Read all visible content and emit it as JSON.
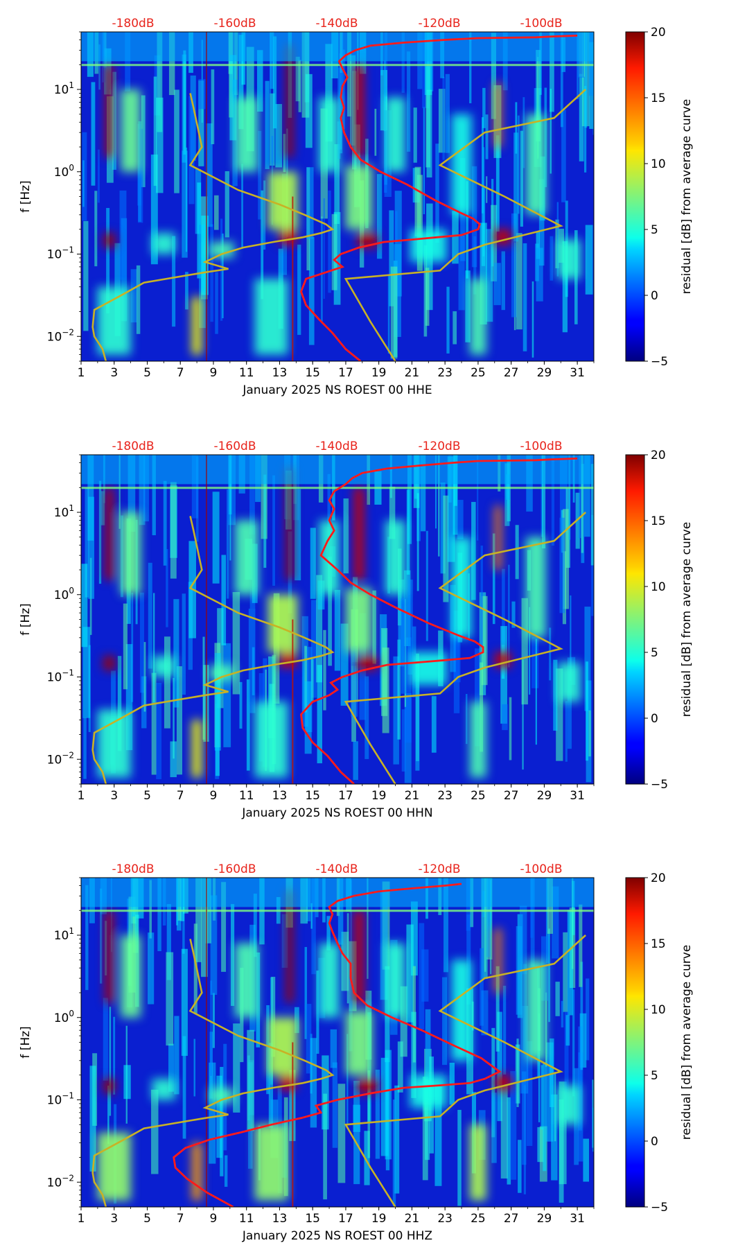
{
  "figure": {
    "cbar_label": "residual [dB] from average curve"
  },
  "chart_data": [
    {
      "type": "heatmap",
      "xlabel": "January 2025 NS ROEST 00 HHE",
      "ylabel": "f [Hz]",
      "x_ticks": [
        "1",
        "3",
        "5",
        "7",
        "9",
        "11",
        "13",
        "15",
        "17",
        "19",
        "21",
        "23",
        "25",
        "27",
        "29",
        "31"
      ],
      "y_ticks": [
        "10^-2",
        "10^-1",
        "10^0",
        "10^1"
      ],
      "xlim": [
        1,
        32
      ],
      "ylim": [
        0.005,
        50
      ],
      "yscale": "log",
      "top_ticks": [
        "-180dB",
        "-160dB",
        "-140dB",
        "-120dB",
        "-100dB"
      ],
      "colorbar": {
        "ticks": [
          "-5",
          "0",
          "5",
          "10",
          "15",
          "20"
        ],
        "range": [
          -5,
          20
        ],
        "colormap": "jet"
      },
      "series": [
        {
          "color": "#ff1a1a",
          "points": [
            [
              17.9,
              0.005
            ],
            [
              17.0,
              0.007
            ],
            [
              16.2,
              0.011
            ],
            [
              15.4,
              0.016
            ],
            [
              14.6,
              0.024
            ],
            [
              14.3,
              0.035
            ],
            [
              14.6,
              0.05
            ],
            [
              15.8,
              0.06
            ],
            [
              16.8,
              0.07
            ],
            [
              16.3,
              0.085
            ],
            [
              16.7,
              0.1
            ],
            [
              17.8,
              0.12
            ],
            [
              19.3,
              0.14
            ],
            [
              21.0,
              0.15
            ],
            [
              22.5,
              0.16
            ],
            [
              24.0,
              0.17
            ],
            [
              25.0,
              0.2
            ],
            [
              25.1,
              0.23
            ],
            [
              24.7,
              0.27
            ],
            [
              23.9,
              0.32
            ],
            [
              22.4,
              0.45
            ],
            [
              20.7,
              0.7
            ],
            [
              19.1,
              1.0
            ],
            [
              17.9,
              1.4
            ],
            [
              17.3,
              2.0
            ],
            [
              16.9,
              3.0
            ],
            [
              16.7,
              4.5
            ],
            [
              16.9,
              6
            ],
            [
              16.7,
              8
            ],
            [
              16.8,
              11
            ],
            [
              17.1,
              14
            ],
            [
              16.8,
              18
            ],
            [
              16.6,
              22
            ],
            [
              17.0,
              26
            ],
            [
              17.6,
              30
            ],
            [
              18.5,
              34
            ],
            [
              20.5,
              37
            ],
            [
              23.0,
              40
            ],
            [
              25.0,
              42
            ],
            [
              28.5,
              43
            ],
            [
              29.5,
              44
            ],
            [
              31.0,
              45
            ]
          ]
        },
        {
          "color": "#c8b226",
          "points": [
            [
              2.5,
              0.005
            ],
            [
              2.3,
              0.007
            ],
            [
              1.8,
              0.01
            ],
            [
              1.7,
              0.013
            ],
            [
              1.8,
              0.021
            ],
            [
              3.6,
              0.033
            ],
            [
              4.8,
              0.045
            ],
            [
              8.5,
              0.06
            ],
            [
              9.9,
              0.066
            ],
            [
              8.5,
              0.08
            ],
            [
              9.5,
              0.1
            ],
            [
              10.8,
              0.12
            ],
            [
              12.6,
              0.14
            ],
            [
              14.4,
              0.16
            ],
            [
              15.5,
              0.18
            ],
            [
              16.2,
              0.2
            ],
            [
              15.8,
              0.23
            ],
            [
              14.5,
              0.3
            ],
            [
              13.0,
              0.4
            ],
            [
              10.5,
              0.6
            ],
            [
              7.6,
              1.2
            ],
            [
              8.3,
              2.0
            ],
            [
              7.8,
              6
            ],
            [
              7.6,
              9
            ],
            [
              20.0,
              0.005
            ],
            [
              18.5,
              0.015
            ],
            [
              17.0,
              0.05
            ],
            [
              22.7,
              0.063
            ],
            [
              23.8,
              0.1
            ],
            [
              25.4,
              0.13
            ],
            [
              30.0,
              0.22
            ],
            [
              26.6,
              0.5
            ],
            [
              22.7,
              1.2
            ],
            [
              25.4,
              3.0
            ],
            [
              29.6,
              4.5
            ],
            [
              31.5,
              10
            ]
          ]
        }
      ]
    },
    {
      "type": "heatmap",
      "xlabel": "January 2025 NS ROEST 00 HHN",
      "ylabel": "f [Hz]",
      "x_ticks": [
        "1",
        "3",
        "5",
        "7",
        "9",
        "11",
        "13",
        "15",
        "17",
        "19",
        "21",
        "23",
        "25",
        "27",
        "29",
        "31"
      ],
      "y_ticks": [
        "10^-2",
        "10^-1",
        "10^0",
        "10^1"
      ],
      "xlim": [
        1,
        32
      ],
      "ylim": [
        0.005,
        50
      ],
      "yscale": "log",
      "top_ticks": [
        "-180dB",
        "-160dB",
        "-140dB",
        "-120dB",
        "-100dB"
      ],
      "colorbar": {
        "ticks": [
          "-5",
          "0",
          "5",
          "10",
          "15",
          "20"
        ],
        "range": [
          -5,
          20
        ],
        "colormap": "jet"
      },
      "series": [
        {
          "color": "#ff1a1a",
          "points": [
            [
              17.5,
              0.005
            ],
            [
              16.7,
              0.007
            ],
            [
              15.9,
              0.011
            ],
            [
              15.0,
              0.016
            ],
            [
              14.4,
              0.024
            ],
            [
              14.3,
              0.035
            ],
            [
              15.0,
              0.05
            ],
            [
              16.0,
              0.06
            ],
            [
              16.5,
              0.07
            ],
            [
              16.1,
              0.085
            ],
            [
              16.8,
              0.1
            ],
            [
              18.0,
              0.12
            ],
            [
              19.5,
              0.14
            ],
            [
              21.3,
              0.15
            ],
            [
              23.0,
              0.16
            ],
            [
              24.5,
              0.17
            ],
            [
              25.3,
              0.2
            ],
            [
              25.3,
              0.23
            ],
            [
              24.8,
              0.27
            ],
            [
              23.8,
              0.32
            ],
            [
              22.0,
              0.45
            ],
            [
              20.0,
              0.7
            ],
            [
              18.5,
              1.0
            ],
            [
              17.3,
              1.4
            ],
            [
              16.5,
              2.0
            ],
            [
              15.5,
              3.0
            ],
            [
              15.9,
              4.5
            ],
            [
              16.3,
              6
            ],
            [
              16.0,
              8
            ],
            [
              16.3,
              11
            ],
            [
              16.0,
              14
            ],
            [
              16.3,
              18
            ],
            [
              17.0,
              22
            ],
            [
              17.4,
              26
            ],
            [
              18.0,
              30
            ],
            [
              19.5,
              34
            ],
            [
              21.5,
              37
            ],
            [
              23.5,
              40
            ],
            [
              25.0,
              42
            ],
            [
              28.5,
              43
            ],
            [
              29.5,
              44
            ],
            [
              31.0,
              45
            ]
          ]
        },
        {
          "color": "#c8b226",
          "points": [
            [
              2.5,
              0.005
            ],
            [
              2.3,
              0.007
            ],
            [
              1.8,
              0.01
            ],
            [
              1.7,
              0.013
            ],
            [
              1.8,
              0.021
            ],
            [
              3.6,
              0.033
            ],
            [
              4.8,
              0.045
            ],
            [
              8.5,
              0.06
            ],
            [
              9.9,
              0.066
            ],
            [
              8.5,
              0.08
            ],
            [
              9.5,
              0.1
            ],
            [
              10.8,
              0.12
            ],
            [
              12.6,
              0.14
            ],
            [
              14.4,
              0.16
            ],
            [
              15.5,
              0.18
            ],
            [
              16.2,
              0.2
            ],
            [
              15.8,
              0.23
            ],
            [
              14.5,
              0.3
            ],
            [
              13.0,
              0.4
            ],
            [
              10.5,
              0.6
            ],
            [
              7.6,
              1.2
            ],
            [
              8.3,
              2.0
            ],
            [
              7.8,
              6
            ],
            [
              7.6,
              9
            ],
            [
              20.0,
              0.005
            ],
            [
              18.5,
              0.015
            ],
            [
              17.0,
              0.05
            ],
            [
              22.7,
              0.063
            ],
            [
              23.8,
              0.1
            ],
            [
              25.4,
              0.13
            ],
            [
              30.0,
              0.22
            ],
            [
              26.6,
              0.5
            ],
            [
              22.7,
              1.2
            ],
            [
              25.4,
              3.0
            ],
            [
              29.6,
              4.5
            ],
            [
              31.5,
              10
            ]
          ]
        }
      ]
    },
    {
      "type": "heatmap",
      "xlabel": "January 2025 NS ROEST 00 HHZ",
      "ylabel": "f [Hz]",
      "x_ticks": [
        "1",
        "3",
        "5",
        "7",
        "9",
        "11",
        "13",
        "15",
        "17",
        "19",
        "21",
        "23",
        "25",
        "27",
        "29",
        "31"
      ],
      "y_ticks": [
        "10^-2",
        "10^-1",
        "10^0",
        "10^1"
      ],
      "xlim": [
        1,
        32
      ],
      "ylim": [
        0.005,
        50
      ],
      "yscale": "log",
      "top_ticks": [
        "-180dB",
        "-160dB",
        "-140dB",
        "-120dB",
        "-100dB"
      ],
      "colorbar": {
        "ticks": [
          "-5",
          "0",
          "5",
          "10",
          "15",
          "20"
        ],
        "range": [
          -5,
          20
        ],
        "colormap": "jet"
      },
      "series": [
        {
          "color": "#ff1a1a",
          "points": [
            [
              10.2,
              0.005
            ],
            [
              8.6,
              0.0075
            ],
            [
              7.4,
              0.011
            ],
            [
              6.7,
              0.015
            ],
            [
              6.6,
              0.02
            ],
            [
              7.3,
              0.026
            ],
            [
              8.8,
              0.033
            ],
            [
              10.6,
              0.04
            ],
            [
              12.5,
              0.05
            ],
            [
              14.3,
              0.06
            ],
            [
              15.5,
              0.07
            ],
            [
              15.2,
              0.085
            ],
            [
              16.5,
              0.1
            ],
            [
              18.5,
              0.12
            ],
            [
              20.5,
              0.14
            ],
            [
              22.7,
              0.15
            ],
            [
              24.5,
              0.16
            ],
            [
              25.4,
              0.18
            ],
            [
              26.3,
              0.22
            ],
            [
              25.7,
              0.27
            ],
            [
              25.2,
              0.32
            ],
            [
              23.6,
              0.45
            ],
            [
              21.6,
              0.7
            ],
            [
              19.8,
              1.0
            ],
            [
              18.3,
              1.4
            ],
            [
              17.5,
              2.0
            ],
            [
              17.3,
              3.0
            ],
            [
              17.3,
              4.5
            ],
            [
              16.8,
              6
            ],
            [
              16.5,
              8
            ],
            [
              16.2,
              11
            ],
            [
              16.0,
              14
            ],
            [
              16.2,
              18
            ],
            [
              16.0,
              22
            ],
            [
              16.5,
              26
            ],
            [
              17.5,
              30
            ],
            [
              19.0,
              34
            ],
            [
              21.0,
              37
            ],
            [
              23.0,
              40
            ],
            [
              24.0,
              42
            ]
          ]
        },
        {
          "color": "#c8b226",
          "points": [
            [
              2.5,
              0.005
            ],
            [
              2.3,
              0.007
            ],
            [
              1.8,
              0.01
            ],
            [
              1.7,
              0.013
            ],
            [
              1.8,
              0.021
            ],
            [
              3.6,
              0.033
            ],
            [
              4.8,
              0.045
            ],
            [
              8.5,
              0.06
            ],
            [
              9.9,
              0.066
            ],
            [
              8.5,
              0.08
            ],
            [
              9.5,
              0.1
            ],
            [
              10.8,
              0.12
            ],
            [
              12.6,
              0.14
            ],
            [
              14.4,
              0.16
            ],
            [
              15.5,
              0.18
            ],
            [
              16.2,
              0.2
            ],
            [
              15.8,
              0.23
            ],
            [
              14.5,
              0.3
            ],
            [
              13.0,
              0.4
            ],
            [
              10.5,
              0.6
            ],
            [
              7.6,
              1.2
            ],
            [
              8.3,
              2.0
            ],
            [
              7.8,
              6
            ],
            [
              7.6,
              9
            ],
            [
              20.0,
              0.005
            ],
            [
              18.5,
              0.015
            ],
            [
              17.0,
              0.05
            ],
            [
              22.7,
              0.063
            ],
            [
              23.8,
              0.1
            ],
            [
              25.4,
              0.13
            ],
            [
              30.0,
              0.22
            ],
            [
              26.6,
              0.5
            ],
            [
              22.7,
              1.2
            ],
            [
              25.4,
              3.0
            ],
            [
              29.6,
              4.5
            ],
            [
              31.5,
              10
            ]
          ]
        }
      ]
    }
  ]
}
